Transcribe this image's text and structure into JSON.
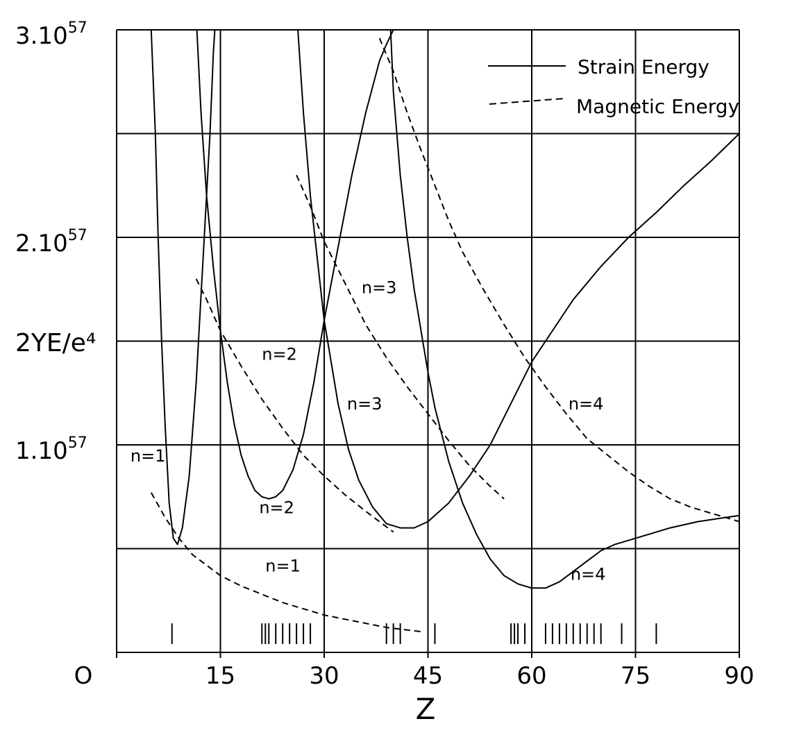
{
  "chart_data": {
    "type": "line",
    "xlabel": "Z",
    "ylabel": "2YE/e⁴",
    "xlim": [
      0,
      90
    ],
    "ylim": [
      0,
      3
    ],
    "y_unit_multiplier": "10^57",
    "grid": true,
    "legend_position": "top-right",
    "x_ticks": [
      {
        "value": 0,
        "label": "O"
      },
      {
        "value": 15,
        "label": "15"
      },
      {
        "value": 30,
        "label": "30"
      },
      {
        "value": 45,
        "label": "45"
      },
      {
        "value": 60,
        "label": "60"
      },
      {
        "value": 75,
        "label": "75"
      },
      {
        "value": 90,
        "label": "90"
      }
    ],
    "y_ticks": [
      {
        "value": 1,
        "label": "1.10",
        "exp": "57"
      },
      {
        "value": 2,
        "label": "2.10",
        "exp": "57"
      },
      {
        "value": 3,
        "label": "3.10",
        "exp": "57"
      }
    ],
    "legend": [
      {
        "label": "Strain Energy",
        "style": "solid"
      },
      {
        "label": "Magnetic Energy",
        "style": "dashed"
      }
    ],
    "series": [
      {
        "label": "n=1",
        "kind": "strain",
        "style": "solid",
        "points": [
          [
            5.0,
            3.0
          ],
          [
            5.6,
            2.5
          ],
          [
            6.0,
            2.0
          ],
          [
            6.5,
            1.5
          ],
          [
            7.0,
            1.1
          ],
          [
            7.6,
            0.72
          ],
          [
            8.2,
            0.55
          ],
          [
            8.8,
            0.52
          ],
          [
            9.5,
            0.6
          ],
          [
            10.5,
            0.85
          ],
          [
            11.5,
            1.3
          ],
          [
            12.5,
            1.9
          ],
          [
            13.5,
            2.5
          ],
          [
            14.0,
            2.9
          ],
          [
            14.2,
            3.0
          ]
        ]
      },
      {
        "label": "n=2",
        "kind": "strain",
        "style": "solid",
        "points": [
          [
            11.6,
            3.0
          ],
          [
            12.2,
            2.6
          ],
          [
            13.0,
            2.2
          ],
          [
            14.0,
            1.85
          ],
          [
            15.0,
            1.55
          ],
          [
            16.0,
            1.3
          ],
          [
            17.0,
            1.1
          ],
          [
            18.0,
            0.95
          ],
          [
            19.0,
            0.85
          ],
          [
            20.0,
            0.78
          ],
          [
            21.0,
            0.75
          ],
          [
            22.0,
            0.74
          ],
          [
            23.0,
            0.75
          ],
          [
            24.0,
            0.78
          ],
          [
            25.5,
            0.88
          ],
          [
            27.0,
            1.05
          ],
          [
            28.5,
            1.3
          ],
          [
            30.0,
            1.6
          ],
          [
            32.0,
            1.95
          ],
          [
            34.0,
            2.3
          ],
          [
            36.0,
            2.6
          ],
          [
            38.0,
            2.85
          ],
          [
            39.0,
            2.93
          ],
          [
            40.0,
            3.0
          ]
        ]
      },
      {
        "label": "n=3",
        "kind": "strain",
        "style": "solid",
        "points": [
          [
            26.2,
            3.0
          ],
          [
            27.0,
            2.6
          ],
          [
            28.0,
            2.2
          ],
          [
            29.0,
            1.9
          ],
          [
            30.0,
            1.6
          ],
          [
            31.0,
            1.4
          ],
          [
            32.0,
            1.2
          ],
          [
            33.5,
            0.98
          ],
          [
            35.0,
            0.83
          ],
          [
            37.0,
            0.7
          ],
          [
            39.0,
            0.62
          ],
          [
            41.0,
            0.6
          ],
          [
            43.0,
            0.6
          ],
          [
            45.0,
            0.63
          ],
          [
            48.0,
            0.72
          ],
          [
            51.0,
            0.85
          ],
          [
            54.0,
            1.0
          ],
          [
            57.0,
            1.2
          ],
          [
            60.0,
            1.4
          ],
          [
            63.0,
            1.55
          ],
          [
            66.0,
            1.7
          ],
          [
            70.0,
            1.86
          ],
          [
            74.0,
            2.0
          ],
          [
            78.0,
            2.12
          ],
          [
            82.0,
            2.25
          ],
          [
            86.0,
            2.37
          ],
          [
            90.0,
            2.5
          ]
        ]
      },
      {
        "label": "n=4",
        "kind": "strain",
        "style": "solid",
        "points": [
          [
            39.6,
            3.0
          ],
          [
            40.0,
            2.7
          ],
          [
            41.0,
            2.3
          ],
          [
            42.0,
            2.0
          ],
          [
            43.0,
            1.75
          ],
          [
            44.0,
            1.55
          ],
          [
            45.0,
            1.35
          ],
          [
            46.0,
            1.18
          ],
          [
            48.0,
            0.92
          ],
          [
            50.0,
            0.72
          ],
          [
            52.0,
            0.57
          ],
          [
            54.0,
            0.45
          ],
          [
            56.0,
            0.37
          ],
          [
            58.0,
            0.33
          ],
          [
            60.0,
            0.31
          ],
          [
            62.0,
            0.31
          ],
          [
            64.0,
            0.34
          ],
          [
            66.0,
            0.39
          ],
          [
            68.0,
            0.44
          ],
          [
            70.0,
            0.49
          ],
          [
            72.0,
            0.52
          ],
          [
            76.0,
            0.56
          ],
          [
            80.0,
            0.6
          ],
          [
            84.0,
            0.63
          ],
          [
            88.0,
            0.65
          ],
          [
            90.0,
            0.66
          ]
        ]
      },
      {
        "label": "n=1",
        "kind": "magnetic",
        "style": "dashed",
        "points": [
          [
            5.0,
            0.77
          ],
          [
            7.0,
            0.65
          ],
          [
            9.0,
            0.55
          ],
          [
            11.0,
            0.47
          ],
          [
            13.0,
            0.42
          ],
          [
            15.0,
            0.37
          ],
          [
            18.0,
            0.32
          ],
          [
            21.0,
            0.28
          ],
          [
            24.0,
            0.24
          ],
          [
            27.0,
            0.21
          ],
          [
            30.0,
            0.18
          ],
          [
            33.0,
            0.16
          ],
          [
            36.0,
            0.14
          ],
          [
            39.0,
            0.12
          ],
          [
            41.5,
            0.11
          ],
          [
            44.0,
            0.1
          ]
        ]
      },
      {
        "label": "n=2",
        "kind": "magnetic",
        "style": "dashed",
        "points": [
          [
            11.5,
            1.8
          ],
          [
            13.0,
            1.7
          ],
          [
            15.0,
            1.55
          ],
          [
            18.0,
            1.38
          ],
          [
            21.0,
            1.22
          ],
          [
            24.0,
            1.08
          ],
          [
            27.0,
            0.95
          ],
          [
            30.0,
            0.85
          ],
          [
            33.0,
            0.76
          ],
          [
            36.0,
            0.68
          ],
          [
            38.0,
            0.63
          ],
          [
            40.0,
            0.58
          ]
        ]
      },
      {
        "label": "n=3",
        "kind": "magnetic",
        "style": "dashed",
        "points": [
          [
            26.0,
            2.3
          ],
          [
            28.0,
            2.15
          ],
          [
            30.0,
            1.98
          ],
          [
            33.0,
            1.78
          ],
          [
            36.0,
            1.58
          ],
          [
            39.0,
            1.42
          ],
          [
            42.0,
            1.28
          ],
          [
            45.0,
            1.15
          ],
          [
            48.0,
            1.02
          ],
          [
            51.0,
            0.9
          ],
          [
            54.0,
            0.8
          ],
          [
            56.0,
            0.74
          ]
        ]
      },
      {
        "label": "n=4",
        "kind": "magnetic",
        "style": "dashed",
        "points": [
          [
            38.0,
            2.96
          ],
          [
            40.0,
            2.8
          ],
          [
            42.0,
            2.6
          ],
          [
            44.0,
            2.42
          ],
          [
            46.0,
            2.25
          ],
          [
            48.0,
            2.08
          ],
          [
            50.0,
            1.93
          ],
          [
            53.0,
            1.75
          ],
          [
            56.0,
            1.58
          ],
          [
            59.0,
            1.42
          ],
          [
            62.0,
            1.28
          ],
          [
            65.0,
            1.15
          ],
          [
            68.0,
            1.03
          ],
          [
            71.0,
            0.95
          ],
          [
            74.0,
            0.87
          ],
          [
            77.0,
            0.8
          ],
          [
            80.0,
            0.74
          ],
          [
            83.0,
            0.7
          ],
          [
            86.0,
            0.67
          ],
          [
            88.0,
            0.65
          ],
          [
            90.0,
            0.63
          ]
        ]
      }
    ],
    "curve_labels": [
      {
        "text": "n=1",
        "x": 2.0,
        "y": 0.92
      },
      {
        "text": "n=1",
        "x": 21.5,
        "y": 0.39
      },
      {
        "text": "n=2",
        "x": 21.0,
        "y": 1.41
      },
      {
        "text": "n=2",
        "x": 20.6,
        "y": 0.67
      },
      {
        "text": "n=3",
        "x": 35.4,
        "y": 1.73
      },
      {
        "text": "n=3",
        "x": 33.3,
        "y": 1.17
      },
      {
        "text": "n=4",
        "x": 65.3,
        "y": 1.17
      },
      {
        "text": "n=4",
        "x": 65.6,
        "y": 0.35
      }
    ],
    "z_markers": [
      8,
      21,
      21.5,
      22,
      23,
      24,
      25,
      26,
      27,
      28,
      39,
      40,
      41,
      45,
      46,
      57,
      57.5,
      58,
      59,
      60,
      62,
      63,
      64,
      65,
      66,
      67,
      68,
      69,
      70,
      73,
      75,
      78
    ]
  }
}
